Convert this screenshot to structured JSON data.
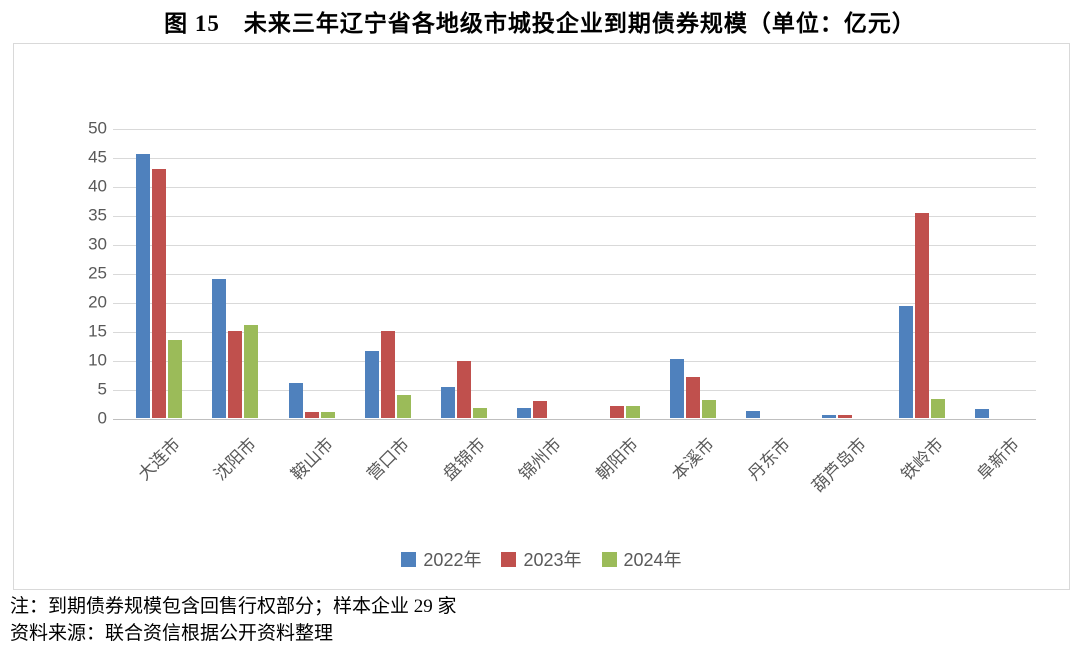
{
  "page": {
    "title": "图 15　未来三年辽宁省各地级市城投企业到期债券规模（单位：亿元）",
    "note": "注：到期债券规模包含回售行权部分；样本企业 29 家",
    "source": "资料来源：联合资信根据公开资料整理"
  },
  "chart_data": {
    "type": "bar",
    "title": "图 15　未来三年辽宁省各地级市城投企业到期债券规模（单位：亿元）",
    "unit": "亿元",
    "categories": [
      "大连市",
      "沈阳市",
      "鞍山市",
      "营口市",
      "盘锦市",
      "锦州市",
      "朝阳市",
      "本溪市",
      "丹东市",
      "葫芦岛市",
      "铁岭市",
      "阜新市"
    ],
    "series": [
      {
        "name": "2022年",
        "color": "#4F81BD",
        "values": [
          45.6,
          23.9,
          6.0,
          11.5,
          5.3,
          1.8,
          0,
          10.1,
          1.2,
          0.6,
          19.3,
          1.6
        ]
      },
      {
        "name": "2023年",
        "color": "#C0504D",
        "values": [
          43.0,
          15.0,
          1.0,
          15.0,
          9.8,
          3.0,
          2.0,
          7.1,
          0,
          0.6,
          35.3,
          0
        ]
      },
      {
        "name": "2024年",
        "color": "#9BBB59",
        "values": [
          13.4,
          16.0,
          1.0,
          4.0,
          1.7,
          0,
          2.0,
          3.1,
          0,
          0,
          3.3,
          0
        ]
      }
    ],
    "ylim": [
      0,
      50
    ],
    "y_ticks": [
      0,
      5,
      10,
      15,
      20,
      25,
      30,
      35,
      40,
      45,
      50
    ],
    "grid": true,
    "legend_position": "bottom",
    "style": {
      "grid_color": "#D9D9D9",
      "axis_line_color": "#BFBFBF",
      "axis_text_color": "#595959"
    }
  }
}
